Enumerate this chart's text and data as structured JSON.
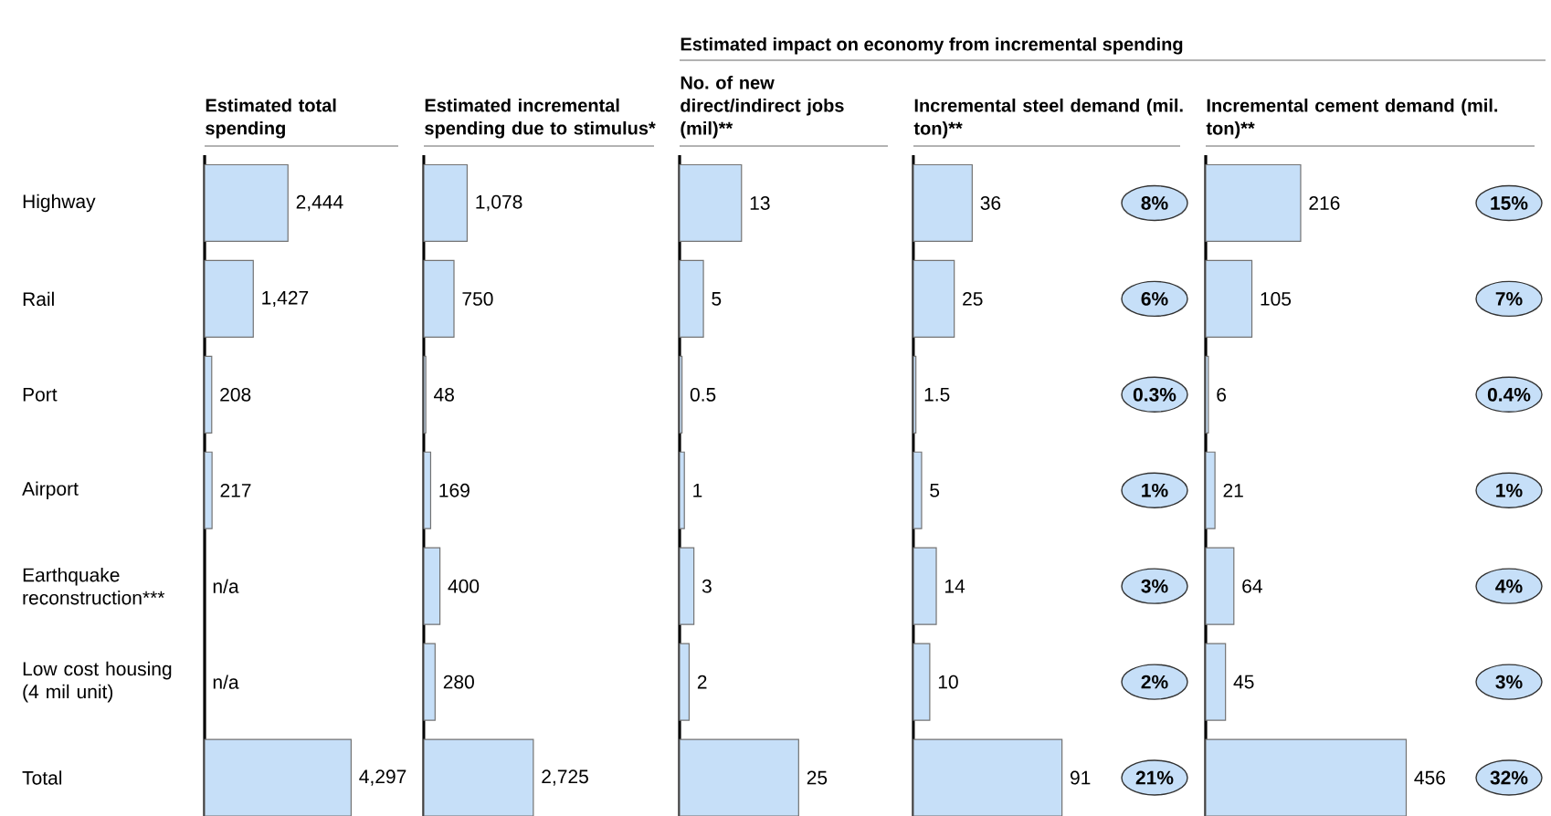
{
  "chart_data": [
    {
      "type": "bar",
      "orientation": "horizontal",
      "title": "Estimated total spending",
      "categories": [
        "Highway",
        "Rail",
        "Port",
        "Airport",
        "Earthquake reconstruction***",
        "Low cost housing (4 mil unit)",
        "Total"
      ],
      "values": [
        2444,
        1427,
        208,
        217,
        null,
        null,
        4297
      ],
      "value_labels": [
        "2,444",
        "1,427",
        "208",
        "217",
        "n/a",
        "n/a",
        "4,297"
      ],
      "color": "#c6dff8",
      "tick_labels": "y"
    },
    {
      "type": "bar",
      "orientation": "horizontal",
      "title": "Estimated incremental spending due to stimulus*",
      "categories": [
        null,
        null,
        null,
        null,
        null,
        null,
        null
      ],
      "values": [
        1078,
        750,
        48,
        169,
        400,
        280,
        2725
      ],
      "value_labels": [
        "1,078",
        "750",
        "48",
        "169",
        "400",
        "280",
        "2,725"
      ],
      "color": "#c6dff8",
      "tick_labels": false
    },
    {
      "type": "bar",
      "orientation": "horizontal",
      "title": "No. of new direct/indirect jobs (mil)**",
      "subtitle": "Estimated impact on economy from incremental spending",
      "categories": [
        null,
        null,
        null,
        null,
        null,
        null,
        null
      ],
      "values": [
        13,
        5,
        0.5,
        1,
        3,
        2,
        25
      ],
      "value_labels": [
        "13",
        "5",
        "0.5",
        "1",
        "3",
        "2",
        "25"
      ],
      "color": "#c6dff8",
      "tick_labels": false
    },
    {
      "type": "bar",
      "orientation": "horizontal",
      "title": "Incremental steel demand (mil. ton)**",
      "categories": [
        null,
        null,
        null,
        null,
        null,
        null,
        null
      ],
      "values": [
        36,
        25,
        1.5,
        5,
        14,
        10,
        91
      ],
      "value_labels": [
        "36",
        "25",
        "1.5",
        "5",
        "14",
        "10",
        "91"
      ],
      "color": "#c6dff8",
      "tick_labels": false,
      "annotations": [
        "8%",
        "6%",
        "0.3%",
        "1%",
        "3%",
        "2%",
        "21%"
      ]
    },
    {
      "type": "bar",
      "orientation": "horizontal",
      "title": "Incremental cement demand (mil. ton)**",
      "categories": [
        null,
        null,
        null,
        null,
        null,
        null,
        null
      ],
      "values": [
        216,
        105,
        6,
        21,
        64,
        45,
        456
      ],
      "value_labels": [
        "216",
        "105",
        "6",
        "21",
        "64",
        "45",
        "456"
      ],
      "color": "#c6dff8",
      "tick_labels": false,
      "annotations": [
        "15%",
        "7%",
        "0.4%",
        "1%",
        "4%",
        "3%",
        "32%"
      ]
    }
  ]
}
